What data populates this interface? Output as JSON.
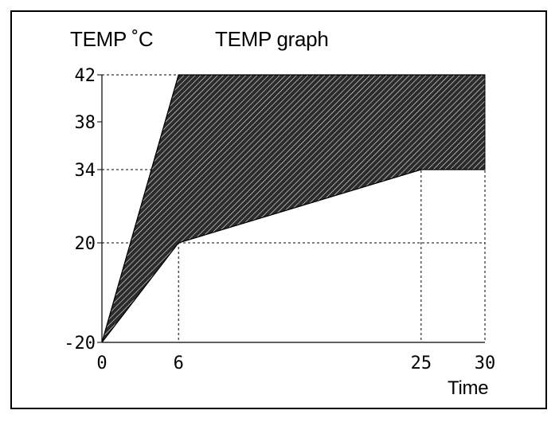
{
  "chart_data": {
    "type": "area",
    "title": "TEMP graph",
    "ylabel": "TEMP ˚C",
    "xlabel": "Time",
    "xlim": [
      0,
      30
    ],
    "ylim": [
      -20,
      42
    ],
    "x_ticks": [
      "0",
      "6",
      "25",
      "30"
    ],
    "y_ticks": [
      "42",
      "38",
      "34",
      "20",
      "-20"
    ],
    "grid": "dashed at tick values",
    "series": [
      {
        "name": "",
        "role": "upper bound",
        "x": [
          0,
          6,
          30
        ],
        "y": [
          -20,
          42,
          42
        ]
      },
      {
        "name": "",
        "role": "lower bound",
        "x": [
          0,
          6,
          25,
          30
        ],
        "y": [
          -20,
          20,
          34,
          34
        ]
      }
    ],
    "fill": "hatched",
    "colors": {
      "fill": "#2b2b2b",
      "hatch": "#ffffff",
      "line": "#000000"
    }
  }
}
